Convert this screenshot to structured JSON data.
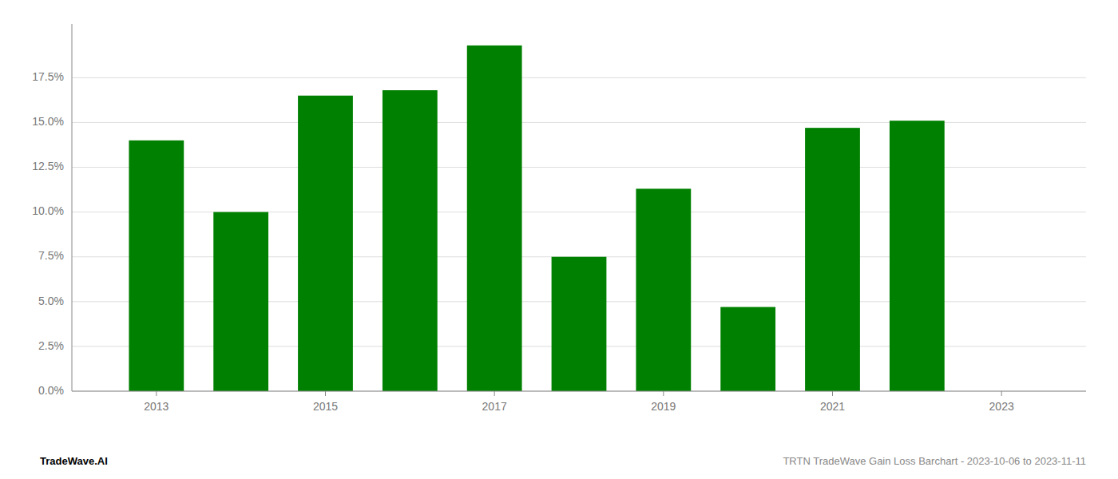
{
  "chart_data": {
    "type": "bar",
    "x": [
      2013,
      2014,
      2015,
      2016,
      2017,
      2018,
      2019,
      2020,
      2021,
      2022
    ],
    "values": [
      0.14,
      0.1,
      0.165,
      0.168,
      0.193,
      0.075,
      0.113,
      0.047,
      0.147,
      0.151
    ],
    "color": "#008000",
    "xlim": [
      2012.0,
      2024.0
    ],
    "xticks": [
      2013,
      2015,
      2017,
      2019,
      2021,
      2023
    ],
    "ylim": [
      0.0,
      0.205
    ],
    "yticks": [
      {
        "value": 0.0,
        "label": "0.0%"
      },
      {
        "value": 0.025,
        "label": "2.5%"
      },
      {
        "value": 0.05,
        "label": "5.0%"
      },
      {
        "value": 0.075,
        "label": "7.5%"
      },
      {
        "value": 0.1,
        "label": "10.0%"
      },
      {
        "value": 0.125,
        "label": "12.5%"
      },
      {
        "value": 0.15,
        "label": "15.0%"
      },
      {
        "value": 0.175,
        "label": "17.5%"
      }
    ],
    "grid": true,
    "annotations": [
      "TradeWave.AI",
      "TRTN TradeWave Gain Loss Barchart - 2023-10-06 to 2023-11-11"
    ]
  }
}
